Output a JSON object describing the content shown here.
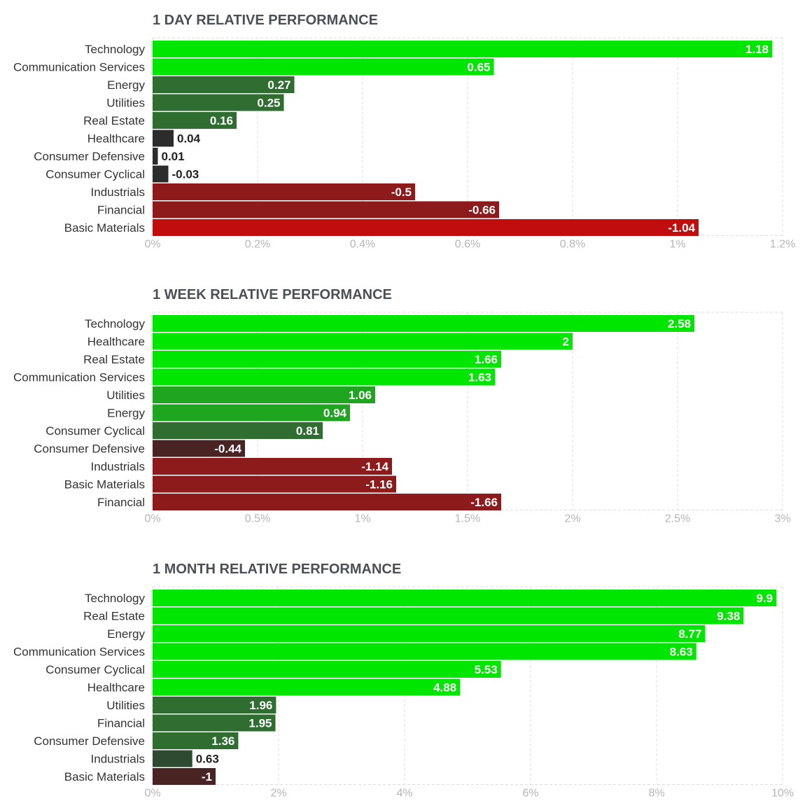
{
  "chart_data": [
    {
      "type": "bar",
      "orientation": "horizontal",
      "title": "1 DAY RELATIVE PERFORMANCE",
      "categories": [
        "Technology",
        "Communication Services",
        "Energy",
        "Utilities",
        "Real Estate",
        "Healthcare",
        "Consumer Defensive",
        "Consumer Cyclical",
        "Industrials",
        "Financial",
        "Basic Materials"
      ],
      "values": [
        1.18,
        0.65,
        0.27,
        0.25,
        0.16,
        0.04,
        0.01,
        -0.03,
        -0.5,
        -0.66,
        -1.04
      ],
      "value_labels": [
        "1.18",
        "0.65",
        "0.27",
        "0.25",
        "0.16",
        "0.04",
        "0.01",
        "-0.03",
        "-0.5",
        "-0.66",
        "-1.04"
      ],
      "xlim": [
        0,
        1.2
      ],
      "ticks": [
        0,
        0.2,
        0.4,
        0.6,
        0.8,
        1,
        1.2
      ],
      "tick_labels": [
        "0%",
        "0.2%",
        "0.4%",
        "0.6%",
        "0.8%",
        "1%",
        "1.2%"
      ],
      "bar_length": "absolute value",
      "grid": true
    },
    {
      "type": "bar",
      "orientation": "horizontal",
      "title": "1 WEEK RELATIVE PERFORMANCE",
      "categories": [
        "Technology",
        "Healthcare",
        "Real Estate",
        "Communication Services",
        "Utilities",
        "Energy",
        "Consumer Cyclical",
        "Consumer Defensive",
        "Industrials",
        "Basic Materials",
        "Financial"
      ],
      "values": [
        2.58,
        2,
        1.66,
        1.63,
        1.06,
        0.94,
        0.81,
        -0.44,
        -1.14,
        -1.16,
        -1.66
      ],
      "value_labels": [
        "2.58",
        "2",
        "1.66",
        "1.63",
        "1.06",
        "0.94",
        "0.81",
        "-0.44",
        "-1.14",
        "-1.16",
        "-1.66"
      ],
      "xlim": [
        0,
        3
      ],
      "ticks": [
        0,
        0.5,
        1,
        1.5,
        2,
        2.5,
        3
      ],
      "tick_labels": [
        "0%",
        "0.5%",
        "1%",
        "1.5%",
        "2%",
        "2.5%",
        "3%"
      ],
      "bar_length": "absolute value",
      "grid": true
    },
    {
      "type": "bar",
      "orientation": "horizontal",
      "title": "1 MONTH RELATIVE PERFORMANCE",
      "categories": [
        "Technology",
        "Real Estate",
        "Energy",
        "Communication Services",
        "Consumer Cyclical",
        "Healthcare",
        "Utilities",
        "Financial",
        "Consumer Defensive",
        "Industrials",
        "Basic Materials"
      ],
      "values": [
        9.9,
        9.38,
        8.77,
        8.63,
        5.53,
        4.88,
        1.96,
        1.95,
        1.36,
        0.63,
        -1
      ],
      "value_labels": [
        "9.9",
        "9.38",
        "8.77",
        "8.63",
        "5.53",
        "4.88",
        "1.96",
        "1.95",
        "1.36",
        "0.63",
        "-1"
      ],
      "xlim": [
        0,
        10
      ],
      "ticks": [
        0,
        2,
        4,
        6,
        8,
        10
      ],
      "tick_labels": [
        "0%",
        "2%",
        "4%",
        "6%",
        "8%",
        "10%"
      ],
      "bar_length": "absolute value",
      "grid": true
    }
  ],
  "colors": {
    "pos_strong": "#00e600",
    "pos_mid": "#1fa51f",
    "pos_low": "#2f6e30",
    "pos_min": "#2e4a30",
    "neutral": "#2c2c2c",
    "neg_min": "#4a2323",
    "neg_low": "#6e1f1f",
    "neg_mid": "#8e1b1b",
    "neg_strong": "#c10d0d"
  }
}
